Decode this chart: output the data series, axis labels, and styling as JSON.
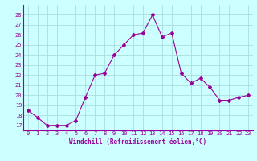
{
  "x": [
    0,
    1,
    2,
    3,
    4,
    5,
    6,
    7,
    8,
    9,
    10,
    11,
    12,
    13,
    14,
    15,
    16,
    17,
    18,
    19,
    20,
    21,
    22,
    23
  ],
  "y": [
    18.5,
    17.8,
    17.0,
    17.0,
    17.0,
    17.5,
    19.8,
    22.0,
    22.2,
    24.0,
    25.0,
    26.0,
    26.2,
    28.0,
    25.8,
    26.2,
    22.2,
    21.2,
    21.7,
    20.8,
    19.5,
    19.5,
    19.8,
    20.0
  ],
  "line_color": "#990099",
  "marker": "D",
  "marker_size": 2.0,
  "bg_color": "#ccffff",
  "grid_color": "#aadddd",
  "xlabel": "Windchill (Refroidissement éolien,°C)",
  "xlabel_color": "#990099",
  "tick_color": "#990099",
  "ylim": [
    16.5,
    29.0
  ],
  "xlim": [
    -0.5,
    23.5
  ],
  "yticks": [
    17,
    18,
    19,
    20,
    21,
    22,
    23,
    24,
    25,
    26,
    27,
    28
  ],
  "xticks": [
    0,
    1,
    2,
    3,
    4,
    5,
    6,
    7,
    8,
    9,
    10,
    11,
    12,
    13,
    14,
    15,
    16,
    17,
    18,
    19,
    20,
    21,
    22,
    23
  ]
}
